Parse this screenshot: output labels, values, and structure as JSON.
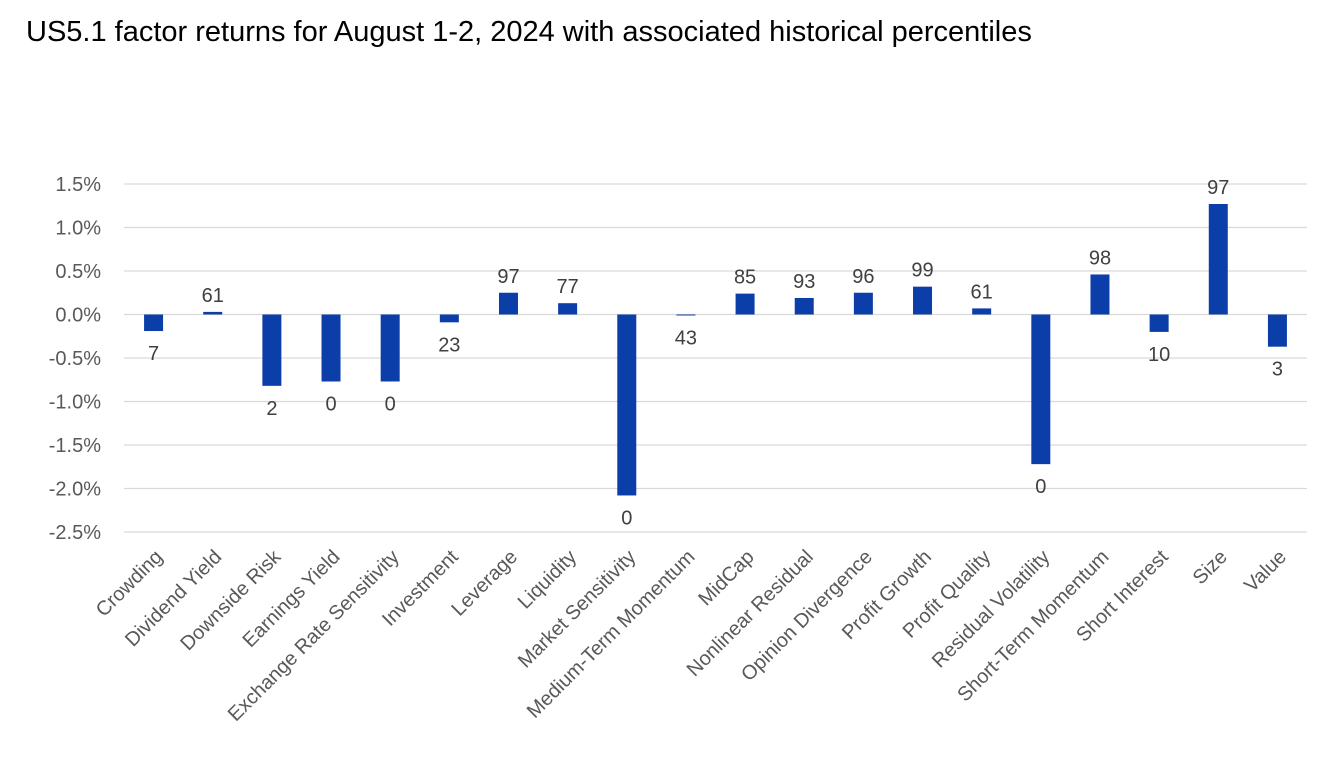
{
  "chart_data": {
    "type": "bar",
    "title": "US5.1 factor returns for August 1-2, 2024 with associated historical percentiles",
    "categories": [
      "Crowding",
      "Dividend Yield",
      "Downside Risk",
      "Earnings Yield",
      "Exchange Rate Sensitivity",
      "Investment",
      "Leverage",
      "Liquidity",
      "Market Sensitivity",
      "Medium-Term Momentum",
      "MidCap",
      "Nonlinear Residual",
      "Opinion Divergence",
      "Profit Growth",
      "Profit Quality",
      "Residual Volatility",
      "Short-Term Momentum",
      "Short Interest",
      "Size",
      "Value"
    ],
    "series": [
      {
        "values": [
          -0.0019,
          0.0003,
          -0.0082,
          -0.0077,
          -0.0077,
          -0.0009,
          0.0025,
          0.0013,
          -0.0208,
          -0.0001,
          0.0024,
          0.0019,
          0.0025,
          0.0032,
          0.0007,
          -0.0172,
          0.0046,
          -0.002,
          0.0127,
          -0.0037
        ],
        "data_labels": [
          "7",
          "61",
          "2",
          "0",
          "0",
          "23",
          "97",
          "77",
          "0",
          "43",
          "85",
          "93",
          "96",
          "99",
          "61",
          "0",
          "98",
          "10",
          "97",
          "3"
        ]
      }
    ],
    "ylim": [
      -0.025,
      0.015
    ],
    "yticks": [
      0.015,
      0.01,
      0.005,
      0,
      -0.005,
      -0.01,
      -0.015,
      -0.02,
      -0.025
    ],
    "ytick_labels": [
      "1.5%",
      "1.0%",
      "0.5%",
      "0.0%",
      "-0.5%",
      "-1.0%",
      "-1.5%",
      "-2.0%",
      "-2.5%"
    ],
    "grid": true,
    "xlabel": "",
    "ylabel": "",
    "colors": {
      "bar": "#0B3EA8",
      "grid": "#d9d9d9",
      "tick_text": "#595959",
      "label_text": "#404040"
    }
  }
}
